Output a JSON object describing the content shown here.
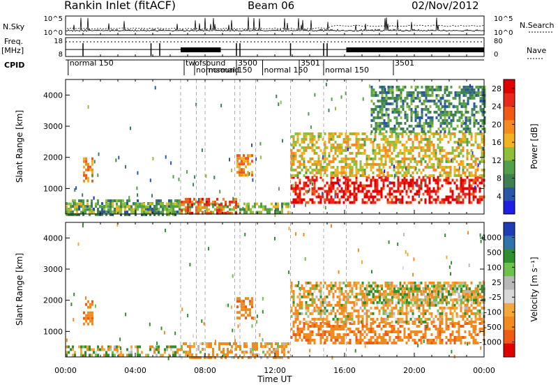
{
  "header": {
    "station": "Rankin Inlet (fitACF)",
    "beam": "Beam 06",
    "date": "02/Nov/2012"
  },
  "status_panels": {
    "nsky_label": "N.Sky",
    "nsearch_label": "N.Search",
    "freq_label_1": "Freq.",
    "freq_label_2": "[MHz]",
    "nave_label": "Nave",
    "cpid_label": "CPID",
    "nsky_ticks": [
      "10^5",
      "10^0"
    ],
    "nsearch_ticks": [
      "10^5",
      "10^0"
    ],
    "freq_ticks": [
      "18",
      "8"
    ],
    "nave_ticks": [
      "80",
      "0"
    ]
  },
  "cpid_labels": [
    {
      "text": "normal 150",
      "t": 0.15,
      "row": 0
    },
    {
      "text": "twofsound",
      "t": 6.8,
      "row": 0
    },
    {
      "text": "normsound",
      "t": 7.4,
      "row": 1
    },
    {
      "text": "normal 150",
      "t": 8.1,
      "row": 1
    },
    {
      "text": "3500",
      "t": 9.8,
      "row": 0
    },
    {
      "text": "normal 150",
      "t": 11.3,
      "row": 1
    },
    {
      "text": "3501",
      "t": 13.4,
      "row": 0
    },
    {
      "text": "normal 150",
      "t": 14.8,
      "row": 1
    },
    {
      "text": "3501",
      "t": 18.8,
      "row": 0
    }
  ],
  "time_axis": {
    "label": "Time UT",
    "ticks": [
      "00:00",
      "04:00",
      "08:00",
      "12:00",
      "16:00",
      "20:00",
      "00:00"
    ]
  },
  "panel_power": {
    "ylabel": "Slant Range [km]",
    "yticks": [
      "1000",
      "2000",
      "3000",
      "4000"
    ],
    "colorbar_label": "Power [dB]",
    "colorbar_ticks": [
      "4",
      "8",
      "12",
      "16",
      "20",
      "24",
      "28"
    ]
  },
  "panel_velocity": {
    "ylabel": "Slant Range [km]",
    "yticks": [
      "1000",
      "2000",
      "3000",
      "4000"
    ],
    "colorbar_label": "Velocity [m s⁻¹]",
    "colorbar_ticks": [
      "1000",
      "500",
      "100",
      "25",
      "-25",
      "-100",
      "-500",
      "-1000"
    ]
  },
  "colors": {
    "power_scale": [
      "#1e1ee6",
      "#2a55a8",
      "#3f7f52",
      "#52a04a",
      "#8fbf3a",
      "#f2b320",
      "#f58a1e",
      "#f05a14",
      "#e8281a",
      "#e00000"
    ],
    "velocity_scale": [
      "#1e3cb4",
      "#2f73a8",
      "#2f8f2f",
      "#6cc24a",
      "#b8b8b8",
      "#d8d8d8",
      "#f2a83a",
      "#f28a1e",
      "#f05a14",
      "#e00000"
    ]
  },
  "chart_data": [
    {
      "type": "heatmap",
      "title": "Power",
      "xlabel": "Time UT",
      "ylabel": "Slant Range [km]",
      "xlim": [
        0,
        24
      ],
      "ylim": [
        180,
        4500
      ],
      "zlabel": "Power [dB]",
      "zlim": [
        0,
        30
      ],
      "regions": [
        {
          "t0": 0.0,
          "t1": 6.5,
          "r0": 200,
          "r1": 650,
          "level": 8
        },
        {
          "t0": 0.0,
          "t1": 12.8,
          "r0": 200,
          "r1": 550,
          "level": 12
        },
        {
          "t0": 1.0,
          "t1": 1.6,
          "r0": 1200,
          "r1": 2000,
          "level": 20
        },
        {
          "t0": 6.6,
          "t1": 9.8,
          "r0": 250,
          "r1": 700,
          "level": 24
        },
        {
          "t0": 9.8,
          "t1": 10.7,
          "r0": 1400,
          "r1": 2100,
          "level": 20
        },
        {
          "t0": 12.9,
          "t1": 24.0,
          "r0": 550,
          "r1": 1400,
          "level": 28
        },
        {
          "t0": 12.9,
          "t1": 24.0,
          "r0": 1400,
          "r1": 2800,
          "level": 16
        },
        {
          "t0": 17.5,
          "t1": 24.0,
          "r0": 2800,
          "r1": 4300,
          "level": 8
        }
      ]
    },
    {
      "type": "heatmap",
      "title": "Velocity",
      "xlabel": "Time UT",
      "ylabel": "Slant Range [km]",
      "xlim": [
        0,
        24
      ],
      "ylim": [
        180,
        4500
      ],
      "zlabel": "Velocity [m s-1]",
      "zlim": [
        -1000,
        1000
      ],
      "regions": [
        {
          "t0": 0.0,
          "t1": 6.5,
          "r0": 200,
          "r1": 550,
          "level": 0
        },
        {
          "t0": 1.0,
          "t1": 1.6,
          "r0": 1200,
          "r1": 2000,
          "level": -300
        },
        {
          "t0": 6.6,
          "t1": 12.8,
          "r0": 200,
          "r1": 650,
          "level": -150
        },
        {
          "t0": 9.8,
          "t1": 10.7,
          "r0": 1400,
          "r1": 2100,
          "level": -300
        },
        {
          "t0": 12.9,
          "t1": 24.0,
          "r0": 600,
          "r1": 1300,
          "level": -300
        },
        {
          "t0": 12.9,
          "t1": 24.0,
          "r0": 1300,
          "r1": 2600,
          "level": -100
        },
        {
          "t0": 17.0,
          "t1": 24.0,
          "r0": 1900,
          "r1": 2500,
          "level": 0
        }
      ]
    }
  ]
}
